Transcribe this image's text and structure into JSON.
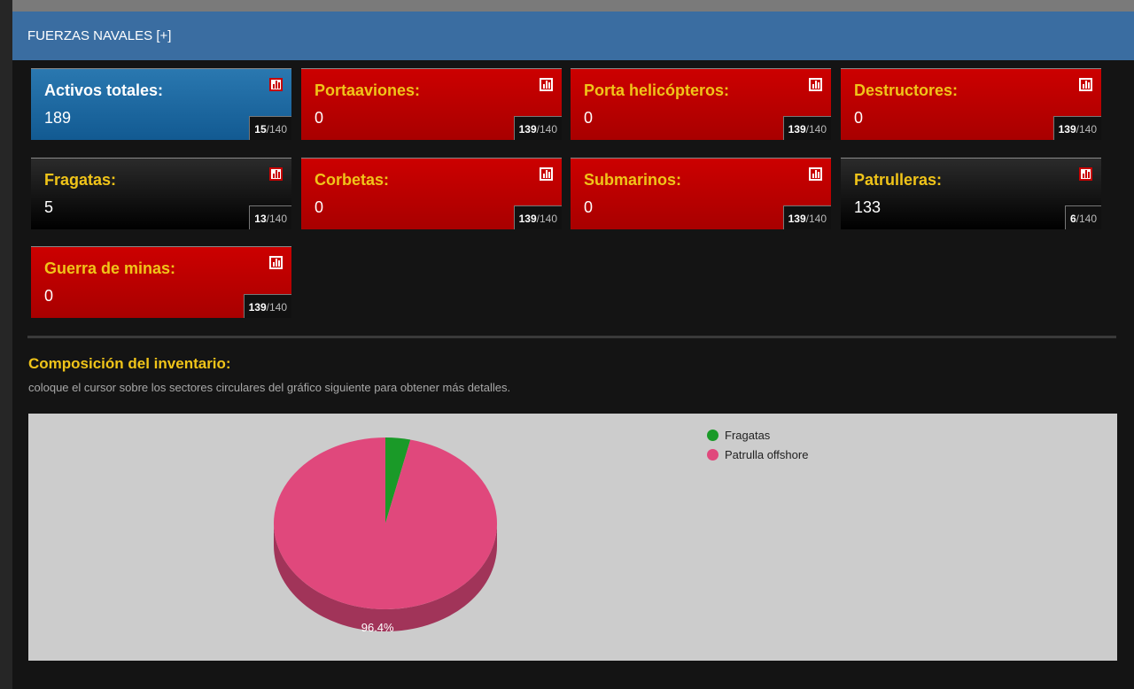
{
  "header": {
    "title": "FUERZAS NAVALES [+]"
  },
  "cards": [
    {
      "label": "Activos totales:",
      "value": "189",
      "rank": "15",
      "total": "/140",
      "style": "blue"
    },
    {
      "label": "Portaaviones:",
      "value": "0",
      "rank": "139",
      "total": "/140",
      "style": "red"
    },
    {
      "label": "Porta helicópteros:",
      "value": "0",
      "rank": "139",
      "total": "/140",
      "style": "red"
    },
    {
      "label": "Destructores:",
      "value": "0",
      "rank": "139",
      "total": "/140",
      "style": "red"
    },
    {
      "label": "Fragatas:",
      "value": "5",
      "rank": "13",
      "total": "/140",
      "style": "black"
    },
    {
      "label": "Corbetas:",
      "value": "0",
      "rank": "139",
      "total": "/140",
      "style": "red"
    },
    {
      "label": "Submarinos:",
      "value": "0",
      "rank": "139",
      "total": "/140",
      "style": "red"
    },
    {
      "label": "Patrulleras:",
      "value": "133",
      "rank": "6",
      "total": "/140",
      "style": "black"
    },
    {
      "label": "Guerra de minas:",
      "value": "0",
      "rank": "139",
      "total": "/140",
      "style": "red"
    }
  ],
  "section": {
    "title": "Composición del inventario:",
    "subtitle": "coloque el cursor sobre los sectores circulares del gráfico siguiente para obtener más detalles."
  },
  "chart_data": {
    "type": "pie",
    "title": "",
    "categories": [
      "Fragatas",
      "Patrulla offshore"
    ],
    "values": [
      3.6,
      96.4
    ],
    "colors": [
      "#1a9a28",
      "#e0487c"
    ],
    "data_labels": [
      "",
      "96.4%"
    ],
    "legend": "top-right"
  },
  "colors": {
    "header": "#3a6da1",
    "accent_label": "#f0c419",
    "red_card": "#c00000",
    "blue_card": "#1f6ea4"
  },
  "icons": {
    "card_icon": "bar-chart-icon"
  }
}
